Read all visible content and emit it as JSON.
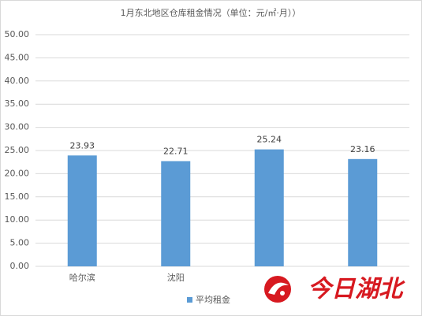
{
  "chart_data": {
    "type": "bar",
    "title": "1月东北地区仓库租金情况（单位：元/㎡·月））",
    "categories": [
      "哈尔滨",
      "沈阳",
      null,
      null
    ],
    "series": [
      {
        "name": "平均租金",
        "color": "#5b9bd5",
        "values": [
          23.93,
          22.71,
          25.24,
          23.16
        ]
      }
    ],
    "ylim": [
      0,
      50
    ],
    "yticks": [
      {
        "value": 0,
        "label": "0.00"
      },
      {
        "value": 5,
        "label": "5.00"
      },
      {
        "value": 10,
        "label": "10.00"
      },
      {
        "value": 15,
        "label": "15.00"
      },
      {
        "value": 20,
        "label": "20.00"
      },
      {
        "value": 25,
        "label": "25.00"
      },
      {
        "value": 30,
        "label": "30.00"
      },
      {
        "value": 35,
        "label": "35.00"
      },
      {
        "value": 40,
        "label": "40.00"
      },
      {
        "value": 45,
        "label": "45.00"
      },
      {
        "value": 50,
        "label": "50.00"
      }
    ],
    "grid": true,
    "legend": "bottom"
  },
  "watermark": "今日湖北"
}
